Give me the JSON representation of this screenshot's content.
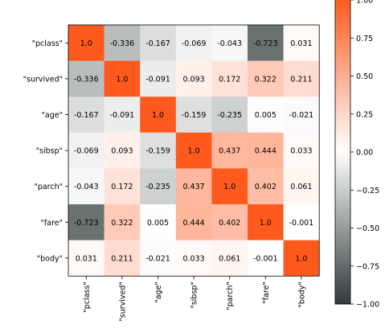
{
  "chart_data": {
    "type": "heatmap",
    "title": "",
    "xlabel": "",
    "ylabel": "",
    "labels": [
      "\"pclass\"",
      "\"survived\"",
      "\"age\"",
      "\"sibsp\"",
      "\"parch\"",
      "\"fare\"",
      "\"body\""
    ],
    "matrix": [
      [
        "1.0",
        "-0.336",
        "-0.167",
        "-0.069",
        "-0.043",
        "-0.723",
        "0.031"
      ],
      [
        "-0.336",
        "1.0",
        "-0.091",
        "0.093",
        "0.172",
        "0.322",
        "0.211"
      ],
      [
        "-0.167",
        "-0.091",
        "1.0",
        "-0.159",
        "-0.235",
        "0.005",
        "-0.021"
      ],
      [
        "-0.069",
        "0.093",
        "-0.159",
        "1.0",
        "0.437",
        "0.444",
        "0.033"
      ],
      [
        "-0.043",
        "0.172",
        "-0.235",
        "0.437",
        "1.0",
        "0.402",
        "0.061"
      ],
      [
        "-0.723",
        "0.322",
        "0.005",
        "0.444",
        "0.402",
        "1.0",
        "-0.001"
      ],
      [
        "0.031",
        "0.211",
        "-0.021",
        "0.033",
        "0.061",
        "-0.001",
        "1.0"
      ]
    ],
    "colorbar": {
      "range": [
        -1.0,
        1.0
      ],
      "ticks": [
        "1.00",
        "0.75",
        "0.50",
        "0.25",
        "0.00",
        "−0.25",
        "−0.50",
        "−0.75",
        "−1.00"
      ],
      "tick_values": [
        1.0,
        0.75,
        0.5,
        0.25,
        0.0,
        -0.25,
        -0.5,
        -0.75,
        -1.0
      ]
    },
    "colors": {
      "low": "#2f3b3b",
      "mid": "#ffffff",
      "high": "#ff5a1e"
    }
  }
}
